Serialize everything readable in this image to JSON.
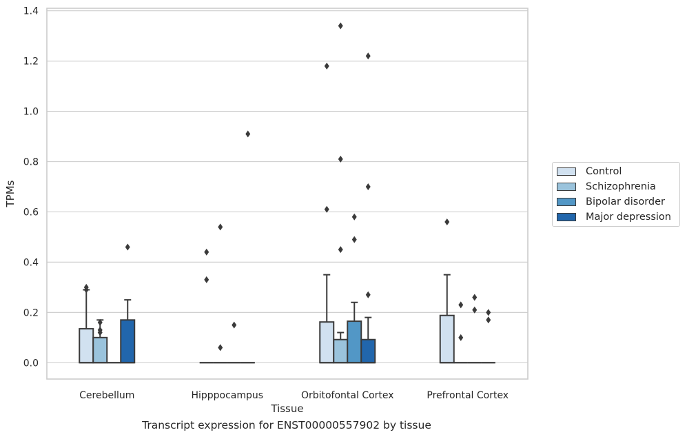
{
  "caption": "Transcript expression for ENST00000557902 by tissue",
  "chart_data": {
    "type": "box",
    "title": "",
    "xlabel": "Tissue",
    "ylabel": "TPMs",
    "ylim": [
      -0.065,
      1.41
    ],
    "yticks": [
      "0.0",
      "0.2",
      "0.4",
      "0.6",
      "0.8",
      "1.0",
      "1.2",
      "1.4"
    ],
    "grid": "horizontal",
    "legend_position": "right",
    "categories": [
      "Cerebellum",
      "Hipppocampus",
      "Orbitofontal Cortex",
      "Prefrontal Cortex"
    ],
    "series": [
      {
        "name": "Control",
        "color": "#d1e1f0",
        "boxes": [
          {
            "q1": 0.0,
            "median": 0.0,
            "q3": 0.135,
            "whisker_low": 0.0,
            "whisker_high": 0.29,
            "outliers": [
              0.3,
              0.29
            ]
          },
          {
            "q1": 0.0,
            "median": 0.0,
            "q3": 0.0,
            "whisker_low": 0.0,
            "whisker_high": 0.0,
            "outliers": [
              0.44,
              0.33
            ]
          },
          {
            "q1": 0.0,
            "median": 0.0,
            "q3": 0.162,
            "whisker_low": 0.0,
            "whisker_high": 0.35,
            "outliers": [
              1.18,
              0.61
            ]
          },
          {
            "q1": 0.0,
            "median": 0.0,
            "q3": 0.188,
            "whisker_low": 0.0,
            "whisker_high": 0.35,
            "outliers": [
              0.56
            ]
          }
        ]
      },
      {
        "name": "Schizophrenia",
        "color": "#9ac3dc",
        "boxes": [
          {
            "q1": 0.0,
            "median": 0.0,
            "q3": 0.1,
            "whisker_low": 0.0,
            "whisker_high": 0.17,
            "outliers": [
              0.16,
              0.13,
              0.12
            ]
          },
          {
            "q1": 0.0,
            "median": 0.0,
            "q3": 0.0,
            "whisker_low": 0.0,
            "whisker_high": 0.0,
            "outliers": [
              0.54,
              0.06
            ]
          },
          {
            "q1": 0.0,
            "median": 0.0,
            "q3": 0.092,
            "whisker_low": 0.0,
            "whisker_high": 0.12,
            "outliers": [
              1.34,
              0.81,
              0.45
            ]
          },
          {
            "q1": 0.0,
            "median": 0.0,
            "q3": 0.0,
            "whisker_low": 0.0,
            "whisker_high": 0.0,
            "outliers": [
              0.23,
              0.1
            ]
          }
        ]
      },
      {
        "name": "Bipolar disorder",
        "color": "#5297c6",
        "boxes": [
          {
            "q1": 0.0,
            "median": 0.0,
            "q3": 0.0,
            "whisker_low": 0.0,
            "whisker_high": 0.0,
            "outliers": []
          },
          {
            "q1": 0.0,
            "median": 0.0,
            "q3": 0.0,
            "whisker_low": 0.0,
            "whisker_high": 0.0,
            "outliers": [
              0.15
            ]
          },
          {
            "q1": 0.0,
            "median": 0.0,
            "q3": 0.165,
            "whisker_low": 0.0,
            "whisker_high": 0.24,
            "outliers": [
              0.58,
              0.49
            ]
          },
          {
            "q1": 0.0,
            "median": 0.0,
            "q3": 0.0,
            "whisker_low": 0.0,
            "whisker_high": 0.0,
            "outliers": [
              0.26,
              0.21
            ]
          }
        ]
      },
      {
        "name": "Major depression",
        "color": "#2166ac",
        "boxes": [
          {
            "q1": 0.0,
            "median": 0.0,
            "q3": 0.17,
            "whisker_low": 0.0,
            "whisker_high": 0.25,
            "outliers": [
              0.46
            ]
          },
          {
            "q1": 0.0,
            "median": 0.0,
            "q3": 0.0,
            "whisker_low": 0.0,
            "whisker_high": 0.0,
            "outliers": [
              0.91
            ]
          },
          {
            "q1": 0.0,
            "median": 0.0,
            "q3": 0.092,
            "whisker_low": 0.0,
            "whisker_high": 0.18,
            "outliers": [
              1.22,
              0.7,
              0.27
            ]
          },
          {
            "q1": 0.0,
            "median": 0.0,
            "q3": 0.0,
            "whisker_low": 0.0,
            "whisker_high": 0.0,
            "outliers": [
              0.2,
              0.17
            ]
          }
        ]
      }
    ]
  }
}
